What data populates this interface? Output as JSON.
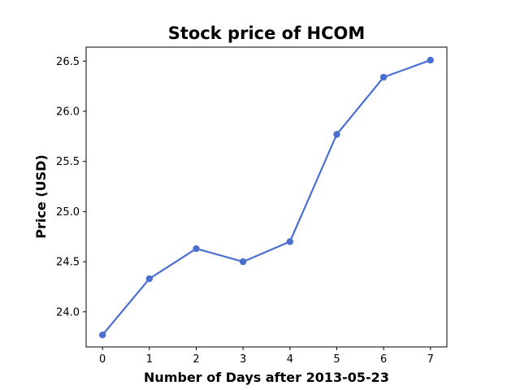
{
  "chart_data": {
    "type": "line",
    "title": "Stock price of HCOM",
    "xlabel": "Number of Days after 2013-05-23",
    "ylabel": "Price (USD)",
    "x": [
      0,
      1,
      2,
      3,
      4,
      5,
      6,
      7
    ],
    "series": [
      {
        "values": [
          23.77,
          24.33,
          24.63,
          24.5,
          24.7,
          25.77,
          26.34,
          26.51
        ],
        "color": "#4a6fd0",
        "marker": "circle"
      }
    ],
    "xlim": [
      -0.35,
      7.35
    ],
    "ylim": [
      23.65,
      26.64
    ],
    "xticks": [
      0,
      1,
      2,
      3,
      4,
      5,
      6,
      7
    ],
    "yticks": [
      24.0,
      24.5,
      25.0,
      25.5,
      26.0,
      26.5
    ],
    "ytick_labels": [
      "24.0",
      "24.5",
      "25.0",
      "25.5",
      "26.0",
      "26.5"
    ],
    "grid": false
  }
}
